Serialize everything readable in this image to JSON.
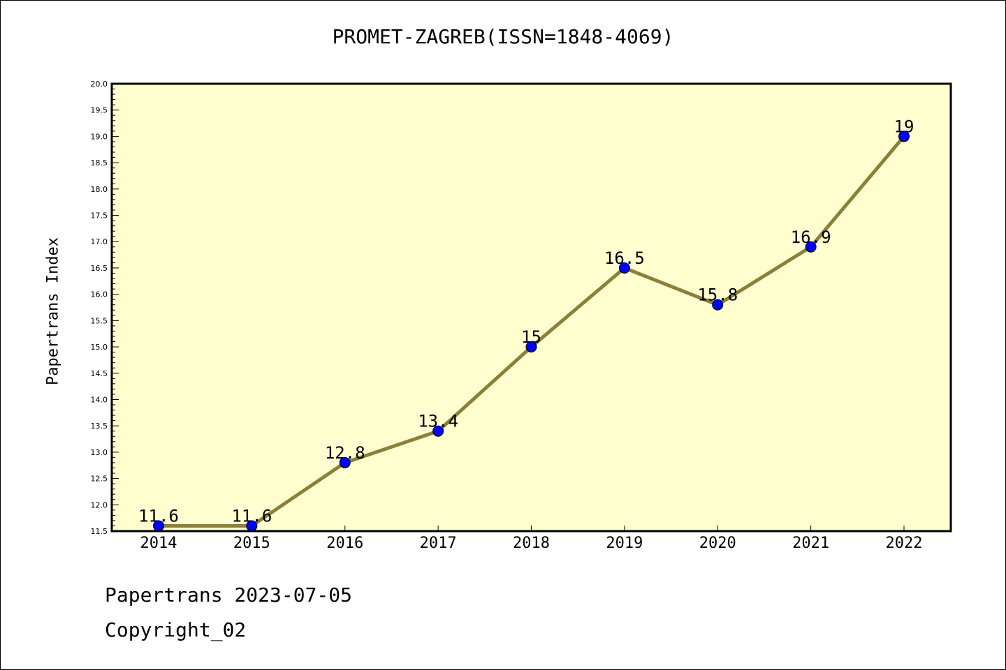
{
  "chart_data": {
    "type": "line",
    "title": "PROMET-ZAGREB(ISSN=1848-4069)",
    "ylabel": "Papertrans Index",
    "xlabel": "",
    "categories": [
      "2014",
      "2015",
      "2016",
      "2017",
      "2018",
      "2019",
      "2020",
      "2021",
      "2022"
    ],
    "values": [
      11.6,
      11.6,
      12.8,
      13.4,
      15,
      16.5,
      15.8,
      16.9,
      19
    ],
    "data_labels": [
      "11.6",
      "11.6",
      "12.8",
      "13.4",
      "15",
      "16.5",
      "15.8",
      "16.9",
      "19"
    ],
    "ylim": [
      11.5,
      20.0
    ],
    "yticks": [
      "11.5",
      "12.0",
      "12.5",
      "13.0",
      "13.5",
      "14.0",
      "14.5",
      "15.0",
      "15.5",
      "16.0",
      "16.5",
      "17.0",
      "17.5",
      "18.0",
      "18.5",
      "19.0",
      "19.5",
      "20.0"
    ],
    "grid": false,
    "colors": {
      "plot_background": "#ffffd0",
      "line": "#8b8038",
      "marker": "#0000ff"
    }
  },
  "footer": {
    "line1": "Papertrans 2023-07-05",
    "line2": "Copyright_02"
  }
}
